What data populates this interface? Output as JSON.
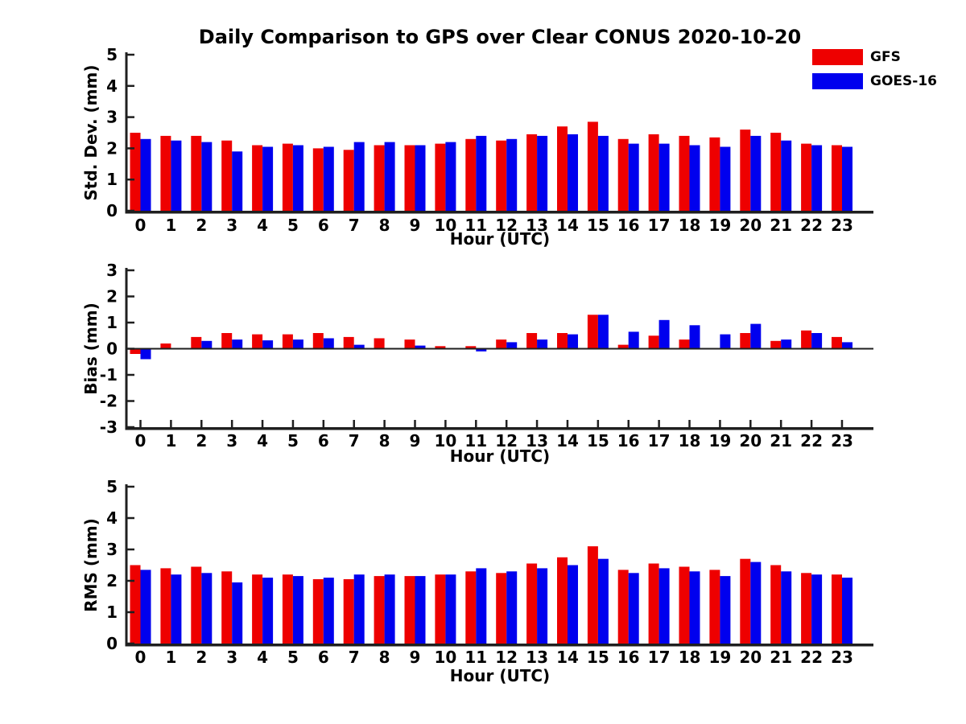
{
  "title": "Daily Comparison to GPS over Clear CONUS 2020-10-20",
  "legend": {
    "position": "top-right",
    "items": [
      {
        "label": "GFS",
        "color": "#ee0000"
      },
      {
        "label": "GOES-16",
        "color": "#0000ee"
      }
    ]
  },
  "chart_data": [
    {
      "type": "bar",
      "title": "",
      "xlabel": "Hour (UTC)",
      "ylabel": "Std. Dev. (mm)",
      "ylim": [
        0,
        5
      ],
      "yticks": [
        0,
        1,
        2,
        3,
        4,
        5
      ],
      "grid": false,
      "legend_position": "top-right",
      "categories": [
        "0",
        "1",
        "2",
        "3",
        "4",
        "5",
        "6",
        "7",
        "8",
        "9",
        "10",
        "11",
        "12",
        "13",
        "14",
        "15",
        "16",
        "17",
        "18",
        "19",
        "20",
        "21",
        "22",
        "23"
      ],
      "series": [
        {
          "name": "GFS",
          "color": "#ee0000",
          "values": [
            2.5,
            2.4,
            2.4,
            2.25,
            2.1,
            2.15,
            2.0,
            1.95,
            2.1,
            2.1,
            2.15,
            2.3,
            2.25,
            2.45,
            2.7,
            2.85,
            2.3,
            2.45,
            2.4,
            2.35,
            2.6,
            2.5,
            2.15,
            2.1
          ]
        },
        {
          "name": "GOES-16",
          "color": "#0000ee",
          "values": [
            2.3,
            2.25,
            2.2,
            1.9,
            2.05,
            2.1,
            2.05,
            2.2,
            2.2,
            2.1,
            2.2,
            2.4,
            2.3,
            2.4,
            2.45,
            2.4,
            2.15,
            2.15,
            2.1,
            2.05,
            2.4,
            2.25,
            2.1,
            2.05
          ]
        }
      ]
    },
    {
      "type": "bar",
      "title": "",
      "xlabel": "Hour (UTC)",
      "ylabel": "Bias (mm)",
      "ylim": [
        -3,
        3
      ],
      "yticks": [
        -3,
        -2,
        -1,
        0,
        1,
        2,
        3
      ],
      "grid": false,
      "zero_line": true,
      "categories": [
        "0",
        "1",
        "2",
        "3",
        "4",
        "5",
        "6",
        "7",
        "8",
        "9",
        "10",
        "11",
        "12",
        "13",
        "14",
        "15",
        "16",
        "17",
        "18",
        "19",
        "20",
        "21",
        "22",
        "23"
      ],
      "series": [
        {
          "name": "GFS",
          "color": "#ee0000",
          "values": [
            -0.2,
            0.2,
            0.45,
            0.6,
            0.55,
            0.55,
            0.6,
            0.45,
            0.4,
            0.35,
            0.1,
            0.1,
            0.35,
            0.6,
            0.6,
            1.3,
            0.15,
            0.5,
            0.35,
            0.03,
            0.6,
            0.3,
            0.7,
            0.45
          ]
        },
        {
          "name": "GOES-16",
          "color": "#0000ee",
          "values": [
            -0.4,
            0.03,
            0.3,
            0.35,
            0.32,
            0.35,
            0.4,
            0.15,
            0.03,
            0.12,
            0,
            -0.1,
            0.25,
            0.35,
            0.55,
            1.3,
            0.65,
            1.1,
            0.9,
            0.55,
            0.95,
            0.35,
            0.6,
            0.25
          ]
        }
      ]
    },
    {
      "type": "bar",
      "title": "",
      "xlabel": "Hour (UTC)",
      "ylabel": "RMS (mm)",
      "ylim": [
        0,
        5
      ],
      "yticks": [
        0,
        1,
        2,
        3,
        4,
        5
      ],
      "grid": false,
      "categories": [
        "0",
        "1",
        "2",
        "3",
        "4",
        "5",
        "6",
        "7",
        "8",
        "9",
        "10",
        "11",
        "12",
        "13",
        "14",
        "15",
        "16",
        "17",
        "18",
        "19",
        "20",
        "21",
        "22",
        "23"
      ],
      "series": [
        {
          "name": "GFS",
          "color": "#ee0000",
          "values": [
            2.5,
            2.4,
            2.45,
            2.3,
            2.2,
            2.2,
            2.05,
            2.05,
            2.15,
            2.15,
            2.2,
            2.3,
            2.25,
            2.55,
            2.75,
            3.1,
            2.35,
            2.55,
            2.45,
            2.35,
            2.7,
            2.5,
            2.25,
            2.2
          ]
        },
        {
          "name": "GOES-16",
          "color": "#0000ee",
          "values": [
            2.35,
            2.2,
            2.25,
            1.95,
            2.1,
            2.15,
            2.1,
            2.2,
            2.2,
            2.15,
            2.2,
            2.4,
            2.3,
            2.4,
            2.5,
            2.7,
            2.25,
            2.4,
            2.3,
            2.15,
            2.6,
            2.3,
            2.2,
            2.1
          ]
        }
      ]
    }
  ]
}
